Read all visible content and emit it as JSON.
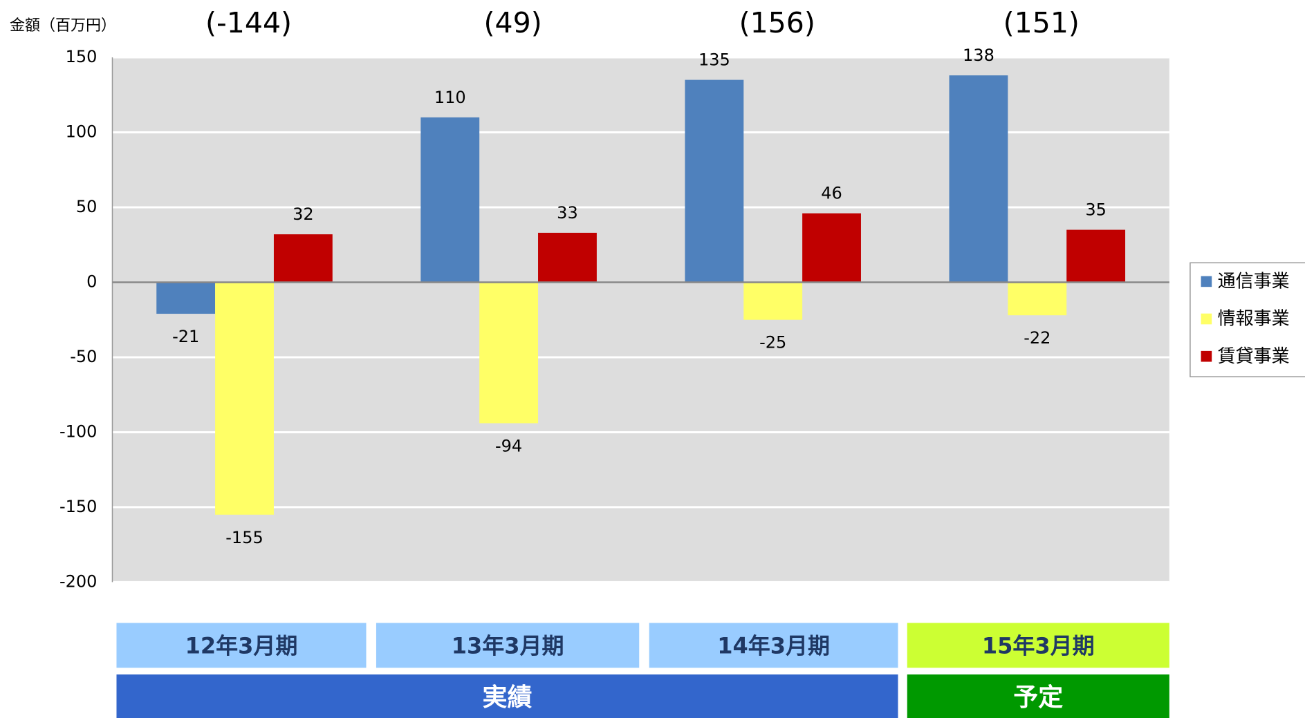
{
  "chart_data": {
    "type": "bar",
    "y_axis_label": "金額（百万円）",
    "annotations": [
      "(-144)",
      "(49)",
      "(156)",
      "(151)"
    ],
    "categories": [
      "12年3月期",
      "13年3月期",
      "14年3月期",
      "15年3月期"
    ],
    "category_colors": [
      "#99ccff",
      "#99ccff",
      "#99ccff",
      "#ccff33"
    ],
    "groups": [
      "実績",
      "予定"
    ],
    "group_colors": [
      "#3366cc",
      "#009900"
    ],
    "series": [
      {
        "name": "通信事業",
        "color": "#4f81bd",
        "values": [
          -21,
          110,
          135,
          138
        ]
      },
      {
        "name": "情報事業",
        "color": "#ffff66",
        "values": [
          -155,
          -94,
          -25,
          -22
        ]
      },
      {
        "name": "賃貸事業",
        "color": "#c00000",
        "values": [
          32,
          33,
          46,
          35
        ]
      }
    ],
    "ylim": [
      -200,
      150
    ],
    "yticks": [
      -200,
      -150,
      -100,
      -50,
      0,
      50,
      100,
      150
    ],
    "grid": true,
    "legend": "right"
  }
}
